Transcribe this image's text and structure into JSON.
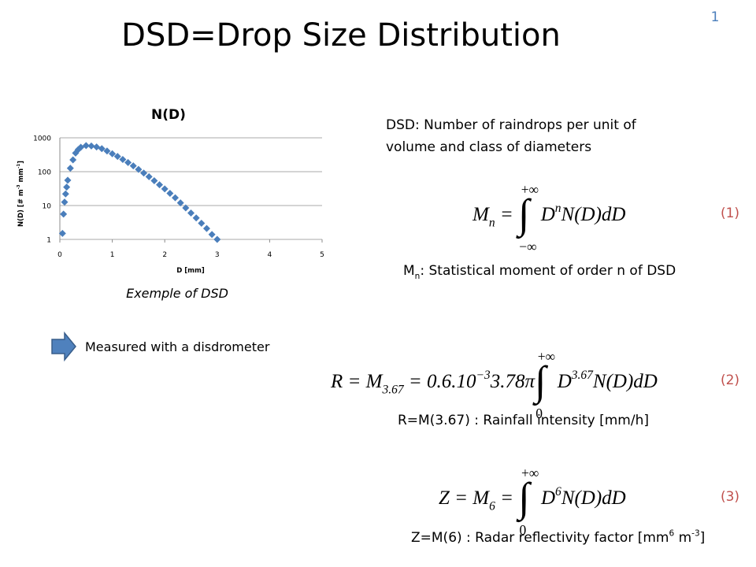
{
  "slide": {
    "title": "DSD=Drop Size Distribution",
    "page_number": "1",
    "chart_caption": "Exemple of DSD",
    "arrow_text": "Measured with a disdrometer",
    "definition": [
      "DSD:  Number of raindrops per unit of",
      "volume and class of diameters"
    ],
    "equations": [
      {
        "number": "(1)",
        "segments": [
          {
            "text": "M"
          },
          {
            "text": "n",
            "pos": "sub"
          },
          {
            "text": " = "
          },
          {
            "text": "∫",
            "pos": "int",
            "upper": "+∞",
            "lower": "−∞"
          },
          {
            "text": "D"
          },
          {
            "text": "n",
            "pos": "sup"
          },
          {
            "text": "N(D)dD"
          }
        ],
        "caption": [
          {
            "text": "M"
          },
          {
            "text": "n",
            "pos": "sub"
          },
          {
            "text": ": Statistical moment of order n of DSD"
          }
        ]
      },
      {
        "number": "(2)",
        "segments": [
          {
            "text": "R = M"
          },
          {
            "text": "3.67",
            "pos": "sub"
          },
          {
            "text": " = 0.6.10"
          },
          {
            "text": "−3",
            "pos": "sup"
          },
          {
            "text": "3.78π"
          },
          {
            "text": "∫",
            "pos": "int",
            "upper": "+∞",
            "lower": "0"
          },
          {
            "text": "D"
          },
          {
            "text": "3.67",
            "pos": "sup"
          },
          {
            "text": "N(D)dD"
          }
        ],
        "caption": [
          {
            "text": "R=M(3.67) : Rainfall intensity [mm/h]"
          }
        ]
      },
      {
        "number": "(3)",
        "segments": [
          {
            "text": "Z = M"
          },
          {
            "text": "6",
            "pos": "sub"
          },
          {
            "text": " = "
          },
          {
            "text": "∫",
            "pos": "int",
            "upper": "+∞",
            "lower": "0"
          },
          {
            "text": "D"
          },
          {
            "text": "6",
            "pos": "sup"
          },
          {
            "text": "N(D)dD"
          }
        ],
        "caption": [
          {
            "text": "Z=M(6) : Radar reflectivity factor [mm"
          },
          {
            "text": "6",
            "pos": "sup"
          },
          {
            "text": " m"
          },
          {
            "text": "-3",
            "pos": "sup"
          },
          {
            "text": "]"
          }
        ]
      }
    ]
  },
  "chart_data": {
    "type": "scatter",
    "title": "N(D)",
    "x_label": "D [mm]",
    "y_label": [
      {
        "text": "N(D) [# m"
      },
      {
        "text": "-3",
        "pos": "sup"
      },
      {
        "text": " mm"
      },
      {
        "text": "-1",
        "pos": "sup"
      },
      {
        "text": "]"
      }
    ],
    "color": "#4a7ebb",
    "ylog": true,
    "grid": true,
    "xlim": [
      0,
      5
    ],
    "xticks": [
      0,
      1,
      2,
      3,
      4,
      5
    ],
    "ylim": [
      1,
      1000
    ],
    "yticks": [
      1,
      10,
      100,
      1000
    ],
    "x": [
      0.05,
      0.07,
      0.09,
      0.11,
      0.13,
      0.15,
      0.2,
      0.25,
      0.3,
      0.35,
      0.4,
      0.5,
      0.6,
      0.7,
      0.8,
      0.9,
      1.0,
      1.1,
      1.2,
      1.3,
      1.4,
      1.5,
      1.6,
      1.7,
      1.8,
      1.9,
      2.0,
      2.1,
      2.2,
      2.3,
      2.4,
      2.5,
      2.6,
      2.7,
      2.8,
      2.9,
      3.0
    ],
    "values": [
      1.5,
      5.6,
      12.6,
      22,
      35,
      56,
      126,
      224,
      355,
      447,
      525,
      589,
      575,
      537,
      479,
      407,
      339,
      282,
      229,
      186,
      148,
      117,
      91,
      71,
      54,
      41,
      31,
      23,
      17,
      12,
      8.5,
      6.0,
      4.3,
      3.0,
      2.1,
      1.4,
      1.0
    ]
  }
}
